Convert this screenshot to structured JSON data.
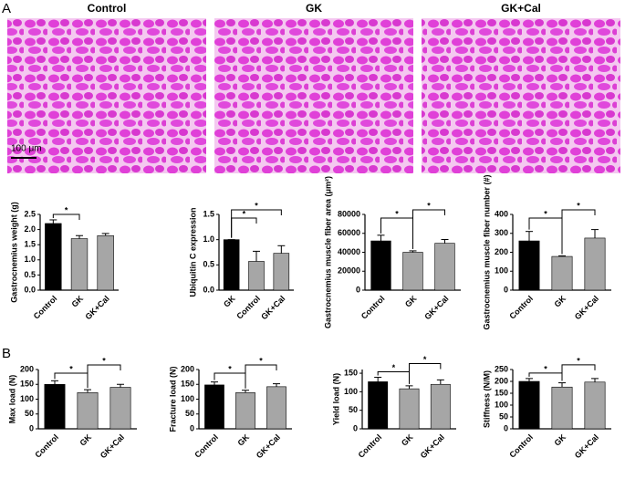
{
  "figure": {
    "panel_labels": [
      "A",
      "B"
    ],
    "image_titles": [
      "Control",
      "GK",
      "GK+Cal"
    ],
    "scale_bar": "100 μm"
  },
  "chart_data": [
    {
      "type": "bar",
      "ylabel": "Gastrocnemius weight (g)",
      "categories": [
        "Control",
        "GK",
        "GK+Cal"
      ],
      "values": [
        2.2,
        1.7,
        1.8
      ],
      "errors": [
        0.12,
        0.1,
        0.07
      ],
      "colors": [
        "#000000",
        "#a6a6a6",
        "#a6a6a6"
      ],
      "ylim": [
        0,
        2.5
      ],
      "yticks": [
        {
          "value": 0,
          "label": "0.0"
        },
        0.5,
        {
          "value": 1,
          "label": "1.0"
        },
        1.5,
        {
          "value": 2,
          "label": "2.0"
        },
        2.5
      ],
      "brackets": [
        {
          "text": "*",
          "between": [
            0,
            1
          ]
        }
      ]
    },
    {
      "type": "bar",
      "ylabel": "Ubiquitin C expression",
      "categories": [
        "GK",
        "Control",
        "GK+Cal"
      ],
      "values": [
        1.0,
        0.57,
        0.73
      ],
      "errors": [
        0,
        0.2,
        0.15
      ],
      "colors": [
        "#000000",
        "#a6a6a6",
        "#a6a6a6"
      ],
      "ylim": [
        0,
        1.5
      ],
      "yticks": [
        {
          "value": 0,
          "label": "0.0"
        },
        0.5,
        {
          "value": 1,
          "label": "1.0"
        },
        1.5
      ],
      "brackets": [
        {
          "text": "*",
          "between": [
            0,
            1
          ]
        },
        {
          "text": "*",
          "between": [
            0,
            2
          ]
        }
      ]
    },
    {
      "type": "bar",
      "ylabel": "Gastrocnemius muscle fiber area (μm²)",
      "categories": [
        "Control",
        "GK",
        "GK+Cal"
      ],
      "values": [
        52000,
        40000,
        49500
      ],
      "errors": [
        6000,
        1500,
        4000
      ],
      "colors": [
        "#000000",
        "#a6a6a6",
        "#a6a6a6"
      ],
      "ylim": [
        0,
        80000
      ],
      "yticks": [
        0,
        20000,
        40000,
        60000,
        80000
      ],
      "brackets": [
        {
          "text": "*",
          "between": [
            0,
            1
          ]
        },
        {
          "text": "*",
          "between": [
            1,
            2
          ]
        }
      ]
    },
    {
      "type": "bar",
      "ylabel": "Gastrocnemius muscle fiber number (#)",
      "categories": [
        "Control",
        "GK",
        "GK+Cal"
      ],
      "values": [
        260,
        178,
        275
      ],
      "errors": [
        50,
        3,
        45
      ],
      "colors": [
        "#000000",
        "#a6a6a6",
        "#a6a6a6"
      ],
      "ylim": [
        0,
        400
      ],
      "yticks": [
        0,
        100,
        200,
        300,
        400
      ],
      "brackets": [
        {
          "text": "*",
          "between": [
            0,
            1
          ]
        },
        {
          "text": "*",
          "between": [
            1,
            2
          ]
        }
      ]
    },
    {
      "type": "bar",
      "ylabel": "Max load (N)",
      "categories": [
        "Control",
        "GK",
        "GK+Cal"
      ],
      "values": [
        150,
        122,
        140
      ],
      "errors": [
        12,
        10,
        10
      ],
      "colors": [
        "#000000",
        "#a6a6a6",
        "#a6a6a6"
      ],
      "ylim": [
        0,
        200
      ],
      "yticks": [
        0,
        50,
        100,
        150,
        200
      ],
      "brackets": [
        {
          "text": "*",
          "between": [
            0,
            1
          ]
        },
        {
          "text": "*",
          "between": [
            1,
            2
          ]
        }
      ]
    },
    {
      "type": "bar",
      "ylabel": "Fracture load (N)",
      "categories": [
        "Control",
        "GK",
        "GK+Cal"
      ],
      "values": [
        148,
        122,
        142
      ],
      "errors": [
        10,
        8,
        10
      ],
      "colors": [
        "#000000",
        "#a6a6a6",
        "#a6a6a6"
      ],
      "ylim": [
        0,
        200
      ],
      "yticks": [
        0,
        50,
        100,
        150,
        200
      ],
      "brackets": [
        {
          "text": "*",
          "between": [
            0,
            1
          ]
        },
        {
          "text": "*",
          "between": [
            1,
            2
          ]
        }
      ]
    },
    {
      "type": "bar",
      "ylabel": "Yield load (N)",
      "categories": [
        "Control",
        "GK",
        "GK+Cal"
      ],
      "values": [
        127,
        108,
        120
      ],
      "errors": [
        12,
        8,
        12
      ],
      "colors": [
        "#000000",
        "#a6a6a6",
        "#a6a6a6"
      ],
      "ylim": [
        0,
        160
      ],
      "yticks": [
        0,
        50,
        100,
        150
      ],
      "brackets": [
        {
          "text": "*",
          "between": [
            0,
            1
          ]
        },
        {
          "text": "*",
          "between": [
            1,
            2
          ]
        }
      ]
    },
    {
      "type": "bar",
      "ylabel": "Stiffness (N/M)",
      "categories": [
        "Control",
        "GK",
        "GK+Cal"
      ],
      "values": [
        200,
        176,
        197
      ],
      "errors": [
        12,
        18,
        15
      ],
      "colors": [
        "#000000",
        "#a6a6a6",
        "#a6a6a6"
      ],
      "ylim": [
        0,
        250
      ],
      "yticks": [
        0,
        50,
        100,
        150,
        200,
        250
      ],
      "brackets": [
        {
          "text": "*",
          "between": [
            0,
            1
          ]
        },
        {
          "text": "*",
          "between": [
            1,
            2
          ]
        }
      ]
    }
  ]
}
